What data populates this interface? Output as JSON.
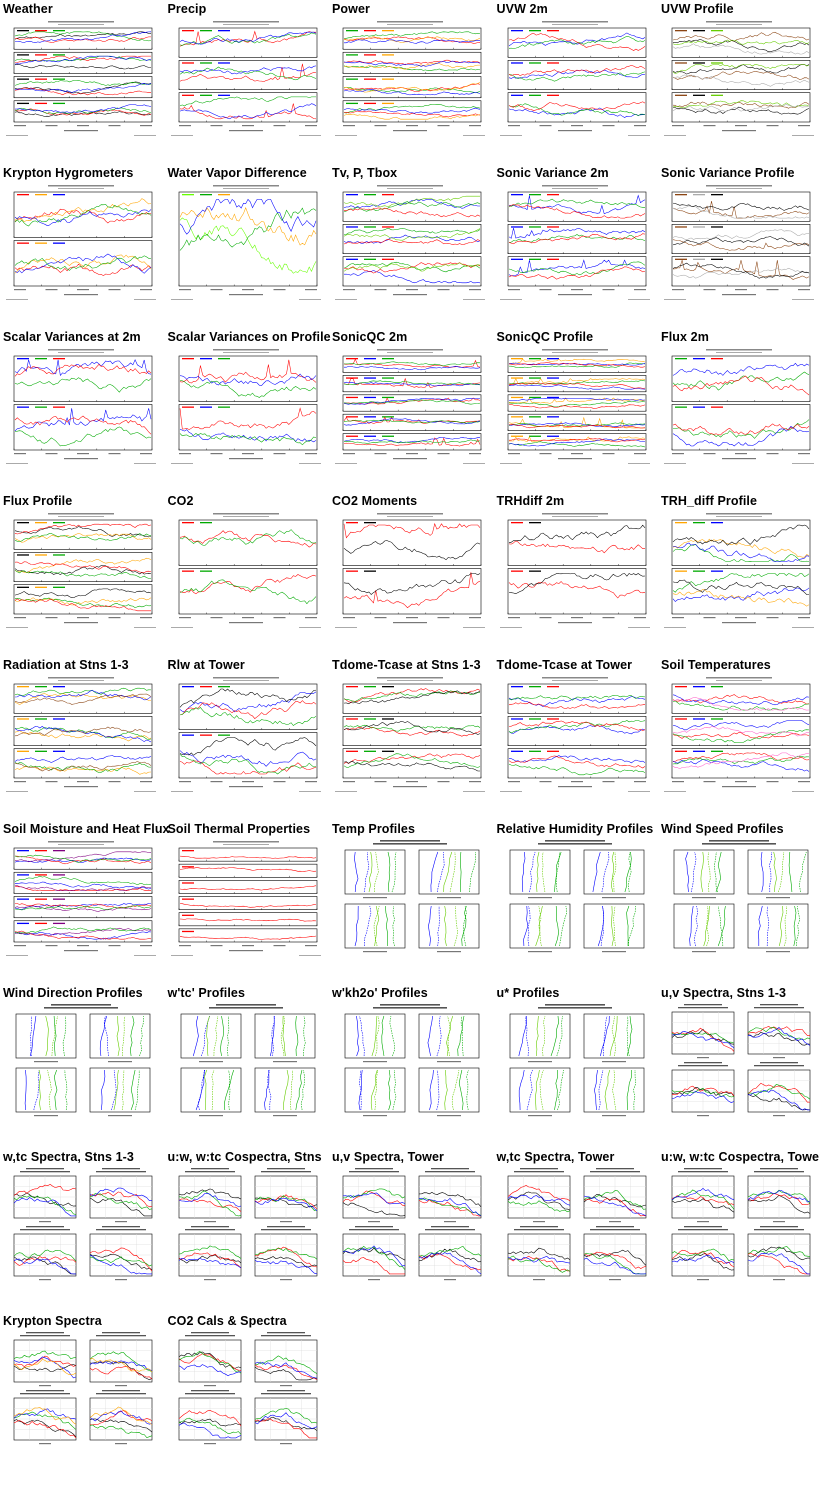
{
  "plots": [
    {
      "title": "Weather",
      "kind": "ts",
      "panels": 4,
      "colors": [
        "#000000",
        "#ff0000",
        "#00aa00",
        "#0000ff"
      ]
    },
    {
      "title": "Precip",
      "kind": "ts",
      "panels": 3,
      "colors": [
        "#ff0000",
        "#00aa00",
        "#0000ff"
      ]
    },
    {
      "title": "Power",
      "kind": "ts",
      "panels": 4,
      "colors": [
        "#00aa00",
        "#ff0000",
        "#ffa500",
        "#0000ff"
      ]
    },
    {
      "title": "UVW 2m",
      "kind": "ts",
      "panels": 3,
      "colors": [
        "#0000ff",
        "#00aa00",
        "#ff0000"
      ]
    },
    {
      "title": "UVW Profile",
      "kind": "ts",
      "panels": 3,
      "colors": [
        "#8b4513",
        "#000000",
        "#66cc00",
        "#aaaaaa"
      ]
    },
    {
      "title": "Krypton Hygrometers",
      "kind": "ts",
      "panels": 2,
      "colors": [
        "#ff0000",
        "#ffa500",
        "#0000ff",
        "#00aa00",
        "#66ff00"
      ]
    },
    {
      "title": "Water Vapor Difference",
      "kind": "ts",
      "panels": 1,
      "colors": [
        "#66ff00",
        "#00aa00",
        "#ffa500",
        "#0000ff",
        "#ff0000"
      ]
    },
    {
      "title": "Tv, P, Tbox",
      "kind": "ts",
      "panels": 3,
      "colors": [
        "#0000ff",
        "#00aa00",
        "#ff0000",
        "#66cc00"
      ]
    },
    {
      "title": "Sonic Variance 2m",
      "kind": "ts",
      "panels": 3,
      "colors": [
        "#0000ff",
        "#00aa00",
        "#ff0000"
      ]
    },
    {
      "title": "Sonic Variance Profile",
      "kind": "ts",
      "panels": 3,
      "colors": [
        "#8b4513",
        "#aaaaaa",
        "#000000"
      ]
    },
    {
      "title": "Scalar Variances at 2m",
      "kind": "ts",
      "panels": 2,
      "colors": [
        "#0000ff",
        "#00aa00",
        "#ff0000"
      ]
    },
    {
      "title": "Scalar Variances on Profile",
      "kind": "ts",
      "panels": 2,
      "colors": [
        "#ff0000",
        "#0000ff",
        "#00aa00"
      ]
    },
    {
      "title": "SonicQC 2m",
      "kind": "ts",
      "panels": 5,
      "colors": [
        "#ff0000",
        "#0000ff",
        "#00aa00"
      ]
    },
    {
      "title": "SonicQC Profile",
      "kind": "ts",
      "panels": 5,
      "colors": [
        "#ffa500",
        "#00aa00",
        "#0000ff",
        "#ff0000"
      ]
    },
    {
      "title": "Flux 2m",
      "kind": "ts",
      "panels": 2,
      "colors": [
        "#00aa00",
        "#0000ff",
        "#ff0000"
      ]
    },
    {
      "title": "Flux Profile",
      "kind": "ts",
      "panels": 3,
      "colors": [
        "#000000",
        "#ffa500",
        "#00aa00",
        "#ff0000"
      ]
    },
    {
      "title": "CO2",
      "kind": "ts",
      "panels": 2,
      "colors": [
        "#ff0000",
        "#00aa00"
      ]
    },
    {
      "title": "CO2 Moments",
      "kind": "ts",
      "panels": 2,
      "colors": [
        "#ff0000",
        "#000000"
      ]
    },
    {
      "title": "TRHdiff 2m",
      "kind": "ts",
      "panels": 2,
      "colors": [
        "#ff0000",
        "#000000"
      ]
    },
    {
      "title": "TRH_diff Profile",
      "kind": "ts",
      "panels": 2,
      "colors": [
        "#ffa500",
        "#00aa00",
        "#0000ff",
        "#000000"
      ]
    },
    {
      "title": "Radiation at Stns 1-3",
      "kind": "ts",
      "panels": 3,
      "colors": [
        "#ffa500",
        "#00aa00",
        "#0000ff",
        "#8b4513"
      ]
    },
    {
      "title": "Rlw at Tower",
      "kind": "ts",
      "panels": 2,
      "colors": [
        "#0000ff",
        "#ff0000",
        "#00aa00",
        "#000000"
      ]
    },
    {
      "title": "Tdome-Tcase at Stns 1-3",
      "kind": "ts",
      "panels": 3,
      "colors": [
        "#ff0000",
        "#00aa00",
        "#000000"
      ]
    },
    {
      "title": "Tdome-Tcase at Tower",
      "kind": "ts",
      "panels": 3,
      "colors": [
        "#0000ff",
        "#00aa00",
        "#ff0000"
      ]
    },
    {
      "title": "Soil Temperatures",
      "kind": "ts",
      "panels": 3,
      "colors": [
        "#ff0000",
        "#0000ff",
        "#00aa00",
        "#ff66cc"
      ]
    },
    {
      "title": "Soil Moisture and Heat Flux",
      "kind": "ts",
      "panels": 4,
      "colors": [
        "#0000ff",
        "#ff0000",
        "#800080",
        "#00aa00"
      ]
    },
    {
      "title": "Soil Thermal Properties",
      "kind": "ts",
      "panels": 6,
      "colors": [
        "#ff0000"
      ]
    },
    {
      "title": "Temp Profiles",
      "kind": "prof",
      "panels": 4,
      "colors": [
        "#0000ff",
        "#66cc00",
        "#00aa00"
      ]
    },
    {
      "title": "Relative Humidity Profiles",
      "kind": "prof",
      "panels": 4,
      "colors": [
        "#0000ff",
        "#66cc00",
        "#00aa00"
      ]
    },
    {
      "title": "Wind Speed Profiles",
      "kind": "prof",
      "panels": 4,
      "colors": [
        "#0000ff",
        "#66cc00",
        "#00aa00"
      ]
    },
    {
      "title": "Wind Direction Profiles",
      "kind": "prof",
      "panels": 4,
      "colors": [
        "#0000ff",
        "#66cc00",
        "#00aa00"
      ]
    },
    {
      "title": "w'tc' Profiles",
      "kind": "prof",
      "panels": 4,
      "colors": [
        "#0000ff",
        "#66cc00",
        "#00aa00"
      ]
    },
    {
      "title": "w'kh2o' Profiles",
      "kind": "prof",
      "panels": 4,
      "colors": [
        "#0000ff",
        "#66cc00",
        "#00aa00"
      ]
    },
    {
      "title": "u* Profiles",
      "kind": "prof",
      "panels": 4,
      "colors": [
        "#0000ff",
        "#66cc00",
        "#00aa00"
      ]
    },
    {
      "title": "u,v Spectra, Stns 1-3",
      "kind": "spec",
      "panels": 4,
      "colors": [
        "#000000",
        "#ff0000",
        "#00aa00",
        "#0000ff"
      ]
    },
    {
      "title": "w,tc Spectra, Stns 1-3",
      "kind": "spec",
      "panels": 4,
      "colors": [
        "#000000",
        "#ff0000",
        "#00aa00",
        "#0000ff"
      ]
    },
    {
      "title": "u:w, w:tc Cospectra, Stns",
      "kind": "spec",
      "panels": 4,
      "colors": [
        "#000000",
        "#ff0000",
        "#00aa00",
        "#0000ff"
      ]
    },
    {
      "title": "u,v Spectra, Tower",
      "kind": "spec",
      "panels": 4,
      "colors": [
        "#000000",
        "#ff0000",
        "#00aa00",
        "#0000ff"
      ]
    },
    {
      "title": "w,tc Spectra, Tower",
      "kind": "spec",
      "panels": 4,
      "colors": [
        "#000000",
        "#ff0000",
        "#00aa00",
        "#0000ff"
      ]
    },
    {
      "title": "u:w, w:tc Cospectra, Tower",
      "kind": "spec",
      "panels": 4,
      "colors": [
        "#000000",
        "#ff0000",
        "#00aa00",
        "#0000ff"
      ]
    },
    {
      "title": "Krypton Spectra",
      "kind": "spec",
      "panels": 4,
      "colors": [
        "#000000",
        "#ff0000",
        "#00aa00",
        "#0000ff",
        "#ffa500"
      ]
    },
    {
      "title": "CO2 Cals & Spectra",
      "kind": "spec",
      "panels": 4,
      "colors": [
        "#000000",
        "#ff0000",
        "#00aa00",
        "#0000ff"
      ]
    }
  ]
}
